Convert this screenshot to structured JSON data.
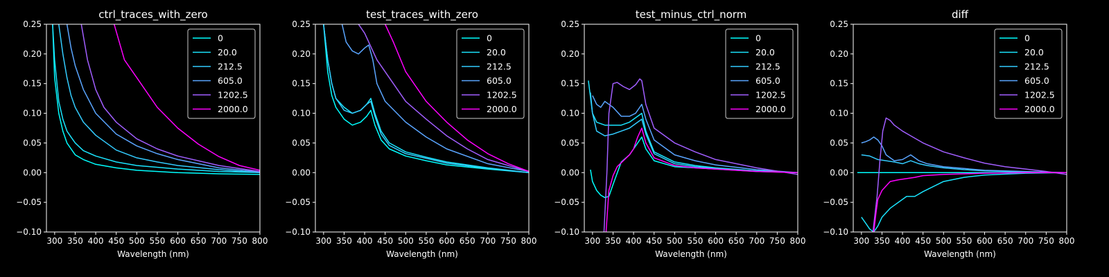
{
  "figure": {
    "background": "#000000",
    "foreground": "#ffffff"
  },
  "chart_data": [
    {
      "type": "line",
      "title": "ctrl_traces_with_zero",
      "xlabel": "Wavelength (nm)",
      "ylabel": "",
      "xlim": [
        280,
        800
      ],
      "ylim": [
        -0.1,
        0.25
      ],
      "xticks": [
        "300",
        "350",
        "400",
        "450",
        "500",
        "550",
        "600",
        "650",
        "700",
        "750",
        "800"
      ],
      "yticks": [
        "−0.10",
        "−0.05",
        "0.00",
        "0.05",
        "0.10",
        "0.15",
        "0.20",
        "0.25"
      ],
      "legend_position": "top-right",
      "grid": false,
      "series": [
        {
          "name": "0",
          "color": "#00ffff",
          "x": [
            295,
            300,
            310,
            320,
            330,
            340,
            350,
            370,
            400,
            450,
            500,
            600,
            700,
            800
          ],
          "y": [
            0.25,
            0.16,
            0.1,
            0.07,
            0.05,
            0.04,
            0.03,
            0.022,
            0.014,
            0.008,
            0.004,
            0.0,
            -0.002,
            -0.003
          ]
        },
        {
          "name": "20.0",
          "color": "#1ae5ff",
          "x": [
            295,
            300,
            310,
            320,
            330,
            340,
            350,
            370,
            400,
            450,
            500,
            600,
            700,
            800
          ],
          "y": [
            0.25,
            0.19,
            0.12,
            0.09,
            0.07,
            0.06,
            0.05,
            0.037,
            0.028,
            0.018,
            0.012,
            0.006,
            0.002,
            0.0
          ]
        },
        {
          "name": "212.5",
          "color": "#33ccff",
          "x": [
            310,
            320,
            330,
            340,
            350,
            370,
            400,
            450,
            500,
            550,
            600,
            700,
            800
          ],
          "y": [
            0.25,
            0.2,
            0.16,
            0.13,
            0.11,
            0.085,
            0.063,
            0.038,
            0.025,
            0.018,
            0.012,
            0.005,
            0.0
          ]
        },
        {
          "name": "605.0",
          "color": "#5aa5ff",
          "x": [
            330,
            340,
            350,
            360,
            370,
            400,
            450,
            500,
            550,
            600,
            700,
            800
          ],
          "y": [
            0.25,
            0.21,
            0.18,
            0.16,
            0.14,
            0.1,
            0.065,
            0.045,
            0.032,
            0.022,
            0.008,
            0.001
          ]
        },
        {
          "name": "1202.5",
          "color": "#a15eff",
          "x": [
            365,
            380,
            400,
            420,
            450,
            500,
            550,
            600,
            700,
            800
          ],
          "y": [
            0.25,
            0.19,
            0.14,
            0.11,
            0.085,
            0.057,
            0.04,
            0.028,
            0.012,
            0.002
          ]
        },
        {
          "name": "2000.0",
          "color": "#ff00ff",
          "x": [
            445,
            470,
            500,
            550,
            600,
            650,
            700,
            750,
            800
          ],
          "y": [
            0.25,
            0.19,
            0.16,
            0.11,
            0.075,
            0.048,
            0.027,
            0.012,
            0.004
          ]
        }
      ]
    },
    {
      "type": "line",
      "title": "test_traces_with_zero",
      "xlabel": "Wavelength (nm)",
      "ylabel": "",
      "xlim": [
        280,
        800
      ],
      "ylim": [
        -0.1,
        0.25
      ],
      "xticks": [
        "300",
        "350",
        "400",
        "450",
        "500",
        "550",
        "600",
        "650",
        "700",
        "750",
        "800"
      ],
      "yticks": [
        "−0.10",
        "−0.05",
        "0.00",
        "0.05",
        "0.10",
        "0.15",
        "0.20",
        "0.25"
      ],
      "legend_position": "top-right",
      "grid": false,
      "series": [
        {
          "name": "0",
          "color": "#00ffff",
          "x": [
            300,
            310,
            320,
            330,
            350,
            370,
            390,
            405,
            415,
            425,
            440,
            460,
            500,
            550,
            600,
            700,
            800
          ],
          "y": [
            0.25,
            0.17,
            0.13,
            0.11,
            0.09,
            0.08,
            0.085,
            0.095,
            0.105,
            0.08,
            0.055,
            0.04,
            0.028,
            0.02,
            0.013,
            0.006,
            0.0
          ]
        },
        {
          "name": "20.0",
          "color": "#1ae5ff",
          "x": [
            300,
            310,
            320,
            330,
            350,
            370,
            390,
            405,
            415,
            425,
            440,
            460,
            500,
            550,
            600,
            700,
            800
          ],
          "y": [
            0.25,
            0.19,
            0.15,
            0.125,
            0.11,
            0.1,
            0.105,
            0.115,
            0.125,
            0.1,
            0.07,
            0.05,
            0.035,
            0.026,
            0.018,
            0.008,
            0.0
          ]
        },
        {
          "name": "212.5",
          "color": "#33ccff",
          "x": [
            300,
            310,
            320,
            330,
            350,
            370,
            390,
            405,
            415,
            425,
            440,
            460,
            500,
            550,
            600,
            700,
            800
          ],
          "y": [
            0.25,
            0.19,
            0.15,
            0.125,
            0.105,
            0.1,
            0.105,
            0.115,
            0.12,
            0.095,
            0.065,
            0.046,
            0.032,
            0.024,
            0.016,
            0.007,
            0.0
          ]
        },
        {
          "name": "605.0",
          "color": "#5aa5ff",
          "x": [
            345,
            355,
            370,
            385,
            400,
            410,
            420,
            430,
            450,
            500,
            550,
            600,
            700,
            800
          ],
          "y": [
            0.25,
            0.22,
            0.205,
            0.2,
            0.21,
            0.215,
            0.19,
            0.15,
            0.12,
            0.085,
            0.06,
            0.04,
            0.015,
            0.002
          ]
        },
        {
          "name": "1202.5",
          "color": "#a15eff",
          "x": [
            385,
            400,
            430,
            470,
            500,
            550,
            600,
            650,
            700,
            800
          ],
          "y": [
            0.25,
            0.235,
            0.19,
            0.15,
            0.12,
            0.09,
            0.062,
            0.04,
            0.022,
            0.002
          ]
        },
        {
          "name": "2000.0",
          "color": "#ff00ff",
          "x": [
            450,
            470,
            500,
            550,
            600,
            650,
            700,
            750,
            800
          ],
          "y": [
            0.25,
            0.22,
            0.17,
            0.12,
            0.085,
            0.055,
            0.032,
            0.015,
            0.002
          ]
        }
      ]
    },
    {
      "type": "line",
      "title": "test_minus_ctrl_norm",
      "xlabel": "Wavelength (nm)",
      "ylabel": "",
      "xlim": [
        280,
        800
      ],
      "ylim": [
        -0.1,
        0.25
      ],
      "xticks": [
        "300",
        "350",
        "400",
        "450",
        "500",
        "550",
        "600",
        "650",
        "700",
        "750",
        "800"
      ],
      "yticks": [
        "−0.10",
        "−0.05",
        "0.00",
        "0.05",
        "0.10",
        "0.15",
        "0.20",
        "0.25"
      ],
      "legend_position": "top-right",
      "grid": false,
      "series": [
        {
          "name": "0",
          "color": "#00ffff",
          "x": [
            295,
            300,
            310,
            320,
            330,
            340,
            350,
            370,
            390,
            410,
            420,
            430,
            450,
            500,
            550,
            600,
            700,
            800
          ],
          "y": [
            0.005,
            -0.015,
            -0.03,
            -0.038,
            -0.042,
            -0.04,
            -0.02,
            0.018,
            0.03,
            0.05,
            0.06,
            0.04,
            0.02,
            0.01,
            0.008,
            0.006,
            0.002,
            0.0
          ]
        },
        {
          "name": "20.0",
          "color": "#1ae5ff",
          "x": [
            290,
            300,
            310,
            330,
            350,
            370,
            390,
            410,
            420,
            430,
            450,
            500,
            550,
            600,
            700,
            800
          ],
          "y": [
            0.155,
            0.1,
            0.085,
            0.08,
            0.08,
            0.08,
            0.085,
            0.095,
            0.1,
            0.07,
            0.035,
            0.018,
            0.012,
            0.008,
            0.003,
            0.0
          ]
        },
        {
          "name": "212.5",
          "color": "#33ccff",
          "x": [
            295,
            300,
            310,
            330,
            350,
            370,
            390,
            410,
            420,
            430,
            450,
            500,
            550,
            600,
            700,
            800
          ],
          "y": [
            0.135,
            0.1,
            0.07,
            0.062,
            0.065,
            0.07,
            0.075,
            0.085,
            0.09,
            0.065,
            0.032,
            0.015,
            0.01,
            0.007,
            0.003,
            0.0
          ]
        },
        {
          "name": "605.0",
          "color": "#5aa5ff",
          "x": [
            300,
            310,
            320,
            330,
            340,
            350,
            370,
            390,
            405,
            415,
            420,
            430,
            450,
            500,
            550,
            600,
            700,
            800
          ],
          "y": [
            0.13,
            0.115,
            0.11,
            0.12,
            0.115,
            0.11,
            0.095,
            0.095,
            0.1,
            0.11,
            0.115,
            0.09,
            0.055,
            0.03,
            0.02,
            0.013,
            0.005,
            0.0
          ]
        },
        {
          "name": "1202.5",
          "color": "#a15eff",
          "x": [
            328,
            335,
            340,
            350,
            360,
            375,
            390,
            405,
            415,
            420,
            430,
            450,
            500,
            550,
            600,
            700,
            800
          ],
          "y": [
            -0.1,
            0.0,
            0.1,
            0.15,
            0.152,
            0.145,
            0.14,
            0.148,
            0.158,
            0.155,
            0.115,
            0.075,
            0.05,
            0.035,
            0.022,
            0.008,
            -0.003
          ]
        },
        {
          "name": "2000.0",
          "color": "#ff00ff",
          "x": [
            333,
            340,
            350,
            360,
            375,
            390,
            400,
            410,
            420,
            430,
            450,
            500,
            550,
            600,
            700,
            800
          ],
          "y": [
            -0.1,
            -0.03,
            -0.005,
            0.01,
            0.02,
            0.03,
            0.04,
            0.06,
            0.075,
            0.05,
            0.025,
            0.012,
            0.008,
            0.006,
            0.002,
            0.0
          ]
        }
      ]
    },
    {
      "type": "line",
      "title": "diff",
      "xlabel": "Wavelength (nm)",
      "ylabel": "",
      "xlim": [
        280,
        800
      ],
      "ylim": [
        -0.1,
        0.25
      ],
      "xticks": [
        "300",
        "350",
        "400",
        "450",
        "500",
        "550",
        "600",
        "650",
        "700",
        "750",
        "800"
      ],
      "yticks": [
        "−0.10",
        "−0.05",
        "0.00",
        "0.05",
        "0.10",
        "0.15",
        "0.20",
        "0.25"
      ],
      "legend_position": "top-right",
      "grid": false,
      "series": [
        {
          "name": "0",
          "color": "#00ffff",
          "x": [
            290,
            800
          ],
          "y": [
            0.0,
            0.0
          ]
        },
        {
          "name": "20.0",
          "color": "#1ae5ff",
          "x": [
            300,
            310,
            320,
            330,
            340,
            350,
            370,
            390,
            410,
            430,
            450,
            500,
            550,
            600,
            700,
            800
          ],
          "y": [
            -0.075,
            -0.085,
            -0.095,
            -0.1,
            -0.09,
            -0.075,
            -0.06,
            -0.05,
            -0.04,
            -0.04,
            -0.032,
            -0.015,
            -0.008,
            -0.004,
            -0.001,
            0.0
          ]
        },
        {
          "name": "212.5",
          "color": "#33ccff",
          "x": [
            300,
            320,
            340,
            360,
            380,
            400,
            420,
            440,
            460,
            500,
            550,
            600,
            700,
            800
          ],
          "y": [
            0.03,
            0.028,
            0.022,
            0.02,
            0.018,
            0.015,
            0.02,
            0.015,
            0.012,
            0.008,
            0.005,
            0.003,
            0.001,
            0.0
          ]
        },
        {
          "name": "605.0",
          "color": "#5aa5ff",
          "x": [
            300,
            310,
            320,
            330,
            340,
            350,
            360,
            380,
            400,
            420,
            440,
            460,
            500,
            550,
            600,
            700,
            800
          ],
          "y": [
            0.05,
            0.052,
            0.055,
            0.06,
            0.055,
            0.045,
            0.03,
            0.02,
            0.022,
            0.03,
            0.02,
            0.015,
            0.01,
            0.007,
            0.004,
            0.002,
            0.0
          ]
        },
        {
          "name": "1202.5",
          "color": "#a15eff",
          "x": [
            328,
            338,
            345,
            352,
            360,
            370,
            380,
            400,
            420,
            450,
            500,
            550,
            600,
            650,
            700,
            750,
            800
          ],
          "y": [
            -0.1,
            -0.04,
            0.02,
            0.07,
            0.092,
            0.088,
            0.08,
            0.07,
            0.062,
            0.05,
            0.035,
            0.025,
            0.016,
            0.01,
            0.006,
            0.002,
            -0.003
          ]
        },
        {
          "name": "2000.0",
          "color": "#ff00ff",
          "x": [
            330,
            335,
            340,
            350,
            370,
            390,
            410,
            430,
            450,
            500,
            550,
            600,
            700,
            800
          ],
          "y": [
            -0.1,
            -0.07,
            -0.045,
            -0.03,
            -0.015,
            -0.012,
            -0.01,
            -0.008,
            -0.005,
            -0.003,
            -0.002,
            -0.001,
            0.0,
            0.0
          ]
        }
      ]
    }
  ]
}
